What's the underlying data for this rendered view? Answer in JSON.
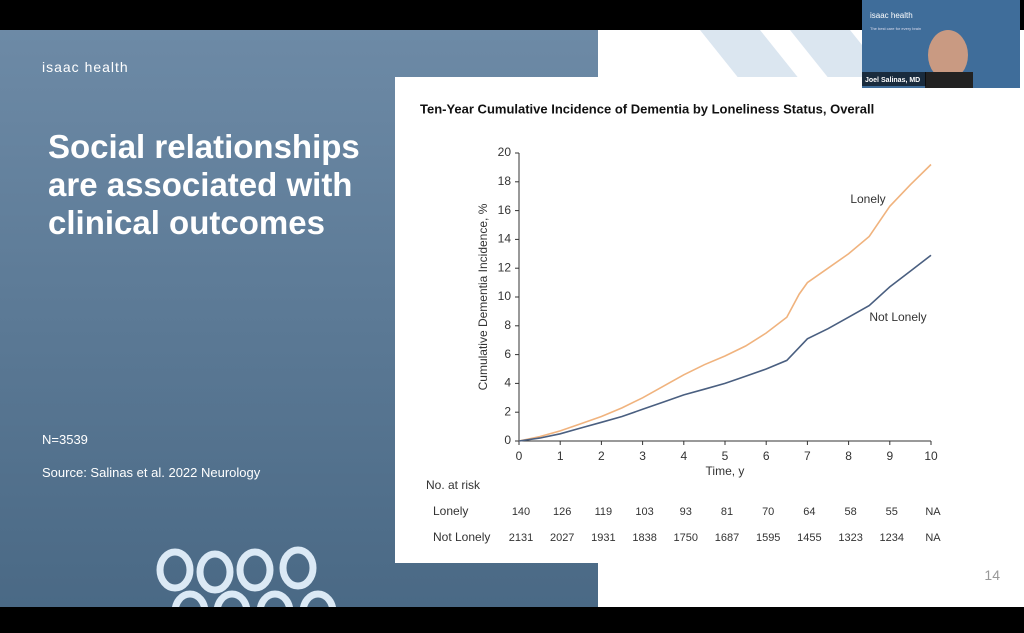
{
  "slide": {
    "logo": "isaac health",
    "headline": [
      "Social relationships",
      "are associated with",
      "clinical outcomes"
    ],
    "sample": "N=3539",
    "source": "Source: Salinas et al. 2022 Neurology",
    "page_number": "14"
  },
  "webcam": {
    "logo": "isaac health",
    "tagline": "The best care for every brain",
    "speaker": "Joel Salinas, MD"
  },
  "chart_data": {
    "type": "line",
    "title": "Ten-Year Cumulative Incidence of Dementia by Loneliness Status, Overall",
    "x_label": "Time, y",
    "y_label": "Cumulative Dementia Incidence, %",
    "x": [
      0,
      0.5,
      1,
      1.5,
      2,
      2.5,
      3,
      3.5,
      4,
      4.5,
      5,
      5.5,
      6,
      6.5,
      6.8,
      7,
      7.5,
      8,
      8.5,
      9,
      9.5,
      10
    ],
    "series": [
      {
        "name": "Lonely",
        "color": "#f0b37e",
        "values": [
          0,
          0.3,
          0.7,
          1.2,
          1.7,
          2.3,
          3.0,
          3.8,
          4.6,
          5.3,
          5.9,
          6.6,
          7.5,
          8.6,
          10.2,
          11.0,
          12.0,
          13.0,
          14.2,
          16.3,
          17.8,
          19.2
        ]
      },
      {
        "name": "Not Lonely",
        "color": "#4a5f80",
        "values": [
          0,
          0.2,
          0.5,
          0.9,
          1.3,
          1.7,
          2.2,
          2.7,
          3.2,
          3.6,
          4.0,
          4.5,
          5.0,
          5.6,
          6.5,
          7.1,
          7.8,
          8.6,
          9.4,
          10.7,
          11.8,
          12.9
        ]
      }
    ],
    "xlim": [
      0,
      10
    ],
    "xticks": [
      0,
      1,
      2,
      3,
      4,
      5,
      6,
      7,
      8,
      9,
      10
    ],
    "ylim": [
      0,
      20
    ],
    "yticks": [
      0,
      2,
      4,
      6,
      8,
      10,
      12,
      14,
      16,
      18,
      20
    ],
    "grid": false
  },
  "risk_table": {
    "title": "No. at risk",
    "rows": [
      {
        "label": "Lonely",
        "values": [
          140,
          126,
          119,
          103,
          93,
          81,
          70,
          64,
          58,
          55,
          "NA"
        ]
      },
      {
        "label": "Not Lonely",
        "values": [
          2131,
          2027,
          1931,
          1838,
          1750,
          1687,
          1595,
          1455,
          1323,
          1234,
          "NA"
        ]
      }
    ]
  }
}
